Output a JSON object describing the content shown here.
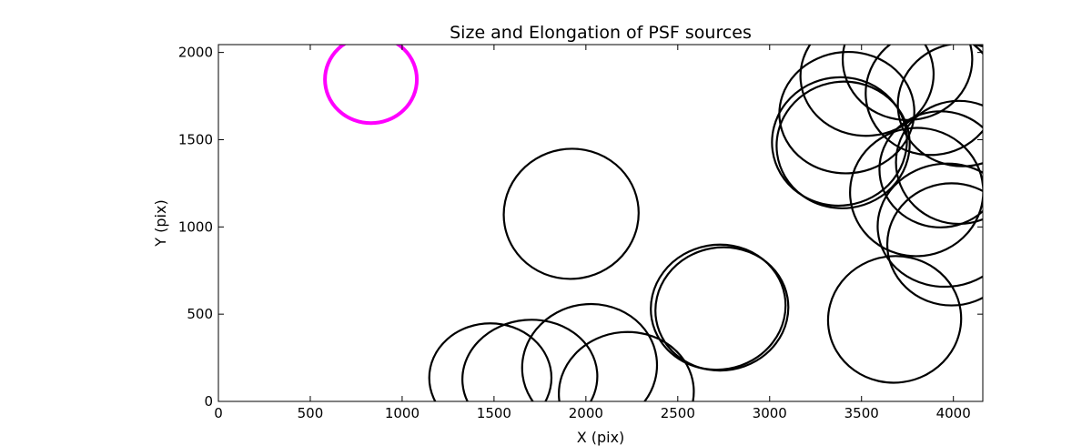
{
  "chart_data": {
    "type": "scatter",
    "title": "Size and Elongation of PSF sources",
    "xlabel": "X (pix)",
    "ylabel": "Y (pix)",
    "xlim": [
      0,
      4160
    ],
    "ylim": [
      0,
      2045
    ],
    "xticks": [
      0,
      500,
      1000,
      1500,
      2000,
      2500,
      3000,
      3500,
      4000
    ],
    "yticks": [
      0,
      500,
      1000,
      1500,
      2000
    ],
    "grid": false,
    "legend": "none",
    "highlight_color": "#ff00ff",
    "source_color": "#000000",
    "sources": [
      {
        "x": 830,
        "y": 1845,
        "width": 500,
        "height": 500,
        "angle": 0,
        "highlight": true
      },
      {
        "x": 1920,
        "y": 1075,
        "width": 735,
        "height": 745,
        "angle": -10
      },
      {
        "x": 1480,
        "y": 135,
        "width": 665,
        "height": 625,
        "angle": 0
      },
      {
        "x": 1695,
        "y": 135,
        "width": 735,
        "height": 665,
        "angle": -5
      },
      {
        "x": 2020,
        "y": 200,
        "width": 735,
        "height": 715,
        "angle": -8
      },
      {
        "x": 2220,
        "y": 50,
        "width": 735,
        "height": 695,
        "angle": -5
      },
      {
        "x": 2720,
        "y": 540,
        "width": 735,
        "height": 715,
        "angle": -10
      },
      {
        "x": 2740,
        "y": 530,
        "width": 725,
        "height": 705,
        "angle": -10
      },
      {
        "x": 3680,
        "y": 470,
        "width": 725,
        "height": 725,
        "angle": -8
      },
      {
        "x": 3380,
        "y": 1490,
        "width": 735,
        "height": 735,
        "angle": -8
      },
      {
        "x": 3400,
        "y": 1470,
        "width": 725,
        "height": 725,
        "angle": -8
      },
      {
        "x": 3420,
        "y": 1655,
        "width": 735,
        "height": 695,
        "angle": -5
      },
      {
        "x": 3530,
        "y": 1870,
        "width": 725,
        "height": 695,
        "angle": -5
      },
      {
        "x": 3750,
        "y": 1960,
        "width": 705,
        "height": 695,
        "angle": 0
      },
      {
        "x": 3880,
        "y": 1770,
        "width": 715,
        "height": 715,
        "angle": -5
      },
      {
        "x": 4050,
        "y": 1700,
        "width": 705,
        "height": 705,
        "angle": 0
      },
      {
        "x": 3930,
        "y": 1330,
        "width": 665,
        "height": 665,
        "angle": 0
      },
      {
        "x": 4030,
        "y": 1370,
        "width": 685,
        "height": 705,
        "angle": 0
      },
      {
        "x": 3800,
        "y": 1200,
        "width": 725,
        "height": 735,
        "angle": -5
      },
      {
        "x": 3960,
        "y": 1010,
        "width": 745,
        "height": 705,
        "angle": -5
      },
      {
        "x": 3990,
        "y": 900,
        "width": 700,
        "height": 700,
        "angle": 0
      }
    ]
  }
}
